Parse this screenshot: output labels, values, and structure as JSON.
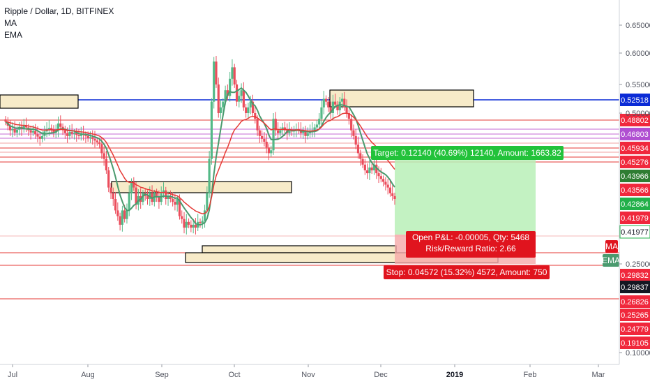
{
  "legend": {
    "title": "Ripple / Dollar, 1D, BITFINEX",
    "ma": "MA",
    "ema": "EMA"
  },
  "colors": {
    "up": "#53b987",
    "down": "#eb4d5c",
    "ma": "#4a9a6e",
    "ema": "#e53935",
    "blue_line": "#0b2bd6",
    "target_zone": "#b9f0b7",
    "stop_zone": "#f5a9a9",
    "box_fill": "#f7ebc9"
  },
  "chart_data": {
    "type": "candlestick",
    "symbol": "XRPUSD",
    "title": "Ripple / Dollar, 1D, BITFINEX",
    "ylim": [
      0.09,
      0.7
    ],
    "x_ticks": [
      "Jul",
      "Aug",
      "Sep",
      "Oct",
      "Nov",
      "Dec",
      "2019",
      "Feb",
      "Mar"
    ],
    "y_ticks": [
      "0.65000",
      "0.60000",
      "0.55000",
      "0.50000",
      "0.25000",
      "0.10000"
    ],
    "price_labels": [
      {
        "value": "0.52518",
        "kind": "blue"
      },
      {
        "value": "0.48802",
        "kind": "red"
      },
      {
        "value": "0.46803",
        "kind": "purple"
      },
      {
        "value": "0.45934",
        "kind": "red"
      },
      {
        "value": "0.45276",
        "kind": "red"
      },
      {
        "value": "0.43966",
        "kind": "darkgreen"
      },
      {
        "value": "0.43566",
        "kind": "red"
      },
      {
        "value": "0.42864",
        "kind": "green"
      },
      {
        "value": "0.41979",
        "kind": "red"
      },
      {
        "value": "0.41977",
        "kind": "outline"
      },
      {
        "value": "0.29832",
        "kind": "red"
      },
      {
        "value": "0.29837",
        "kind": "black"
      },
      {
        "value": "0.26826",
        "kind": "red"
      },
      {
        "value": "0.25265",
        "kind": "red"
      },
      {
        "value": "0.24779",
        "kind": "red"
      },
      {
        "value": "0.19105",
        "kind": "red"
      }
    ],
    "indicator_tags": [
      "MA",
      "EMA"
    ],
    "long_position": {
      "target_text": "Target: 0.12140 (40.69%) 12140, Amount: 1663.82",
      "stop_text": "Stop: 0.04572 (15.32%) 4572, Amount: 750",
      "pnl_text": "Open P&L: -0.00005, Qty: 5468",
      "rr_text": "Risk/Reward Ratio: 2.66"
    },
    "closes": [
      0.485,
      0.478,
      0.47,
      0.472,
      0.466,
      0.471,
      0.476,
      0.472,
      0.478,
      0.475,
      0.47,
      0.466,
      0.469,
      0.463,
      0.459,
      0.455,
      0.46,
      0.468,
      0.472,
      0.474,
      0.471,
      0.466,
      0.47,
      0.482,
      0.476,
      0.47,
      0.465,
      0.46,
      0.467,
      0.464,
      0.466,
      0.462,
      0.46,
      0.464,
      0.462,
      0.46,
      0.456,
      0.458,
      0.455,
      0.452,
      0.449,
      0.446,
      0.43,
      0.42,
      0.4,
      0.37,
      0.36,
      0.35,
      0.33,
      0.32,
      0.305,
      0.33,
      0.315,
      0.33,
      0.36,
      0.38,
      0.37,
      0.34,
      0.355,
      0.345,
      0.36,
      0.355,
      0.35,
      0.36,
      0.345,
      0.36,
      0.355,
      0.345,
      0.36,
      0.365,
      0.35,
      0.355,
      0.35,
      0.345,
      0.34,
      0.35,
      0.32,
      0.315,
      0.3,
      0.31,
      0.305,
      0.3,
      0.305,
      0.3,
      0.31,
      0.308,
      0.312,
      0.33,
      0.36,
      0.42,
      0.52,
      0.59,
      0.55,
      0.5,
      0.51,
      0.52,
      0.54,
      0.53,
      0.56,
      0.58,
      0.55,
      0.52,
      0.53,
      0.54,
      0.51,
      0.5,
      0.51,
      0.52,
      0.5,
      0.49,
      0.47,
      0.46,
      0.455,
      0.45,
      0.44,
      0.43,
      0.435,
      0.49,
      0.47,
      0.465,
      0.47,
      0.475,
      0.47,
      0.465,
      0.47,
      0.468,
      0.47,
      0.472,
      0.47,
      0.465,
      0.47,
      0.46,
      0.465,
      0.468,
      0.47,
      0.475,
      0.48,
      0.49,
      0.51,
      0.525,
      0.52,
      0.51,
      0.5,
      0.52,
      0.515,
      0.505,
      0.52,
      0.525,
      0.51,
      0.5,
      0.49,
      0.47,
      0.46,
      0.445,
      0.43,
      0.42,
      0.41,
      0.4,
      0.395,
      0.405,
      0.4,
      0.41,
      0.395,
      0.39,
      0.385,
      0.38,
      0.375,
      0.37,
      0.36,
      0.355,
      0.35
    ]
  }
}
